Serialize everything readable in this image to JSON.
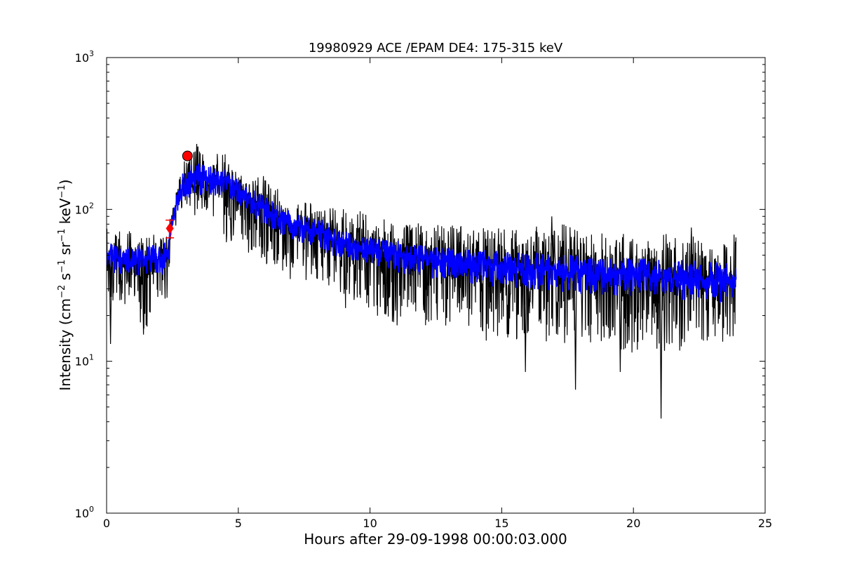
{
  "chart_data": {
    "type": "line",
    "title": "19980929 ACE /EPAM DE4: 175-315 keV",
    "xlabel": "Hours after 29-09-1998 00:00:03.000",
    "ylabel_parts": [
      "Intensity (cm",
      "−2",
      " s",
      "−1",
      " sr",
      "−1",
      " keV",
      "−1",
      ")"
    ],
    "xlim": [
      0,
      25
    ],
    "ylim": [
      1,
      1000
    ],
    "yscale": "log",
    "grid": false,
    "x_ticks": [
      {
        "value": 0,
        "label": "0"
      },
      {
        "value": 5,
        "label": "5"
      },
      {
        "value": 10,
        "label": "10"
      },
      {
        "value": 15,
        "label": "15"
      },
      {
        "value": 20,
        "label": "20"
      },
      {
        "value": 25,
        "label": "25"
      }
    ],
    "y_ticks": [
      {
        "value": 1,
        "base": "10",
        "exp": "0"
      },
      {
        "value": 10,
        "base": "10",
        "exp": "1"
      },
      {
        "value": 100,
        "base": "10",
        "exp": "2"
      },
      {
        "value": 1000,
        "base": "10",
        "exp": "3"
      }
    ],
    "series": [
      {
        "role": "raw",
        "color": "#000000",
        "envelope": [
          {
            "x": 0.0,
            "y": 48,
            "lo": 30,
            "hi": 80
          },
          {
            "x": 0.3,
            "y": 45,
            "lo": 22,
            "hi": 72
          },
          {
            "x": 1.0,
            "y": 47,
            "lo": 28,
            "hi": 72
          },
          {
            "x": 1.4,
            "y": 44,
            "lo": 15,
            "hi": 65
          },
          {
            "x": 2.0,
            "y": 47,
            "lo": 28,
            "hi": 70
          },
          {
            "x": 2.3,
            "y": 50,
            "lo": 22,
            "hi": 72
          },
          {
            "x": 2.5,
            "y": 90,
            "lo": 70,
            "hi": 105
          },
          {
            "x": 2.8,
            "y": 130,
            "lo": 100,
            "hi": 175
          },
          {
            "x": 3.0,
            "y": 150,
            "lo": 110,
            "hi": 220
          },
          {
            "x": 3.4,
            "y": 145,
            "lo": 100,
            "hi": 270
          },
          {
            "x": 4.0,
            "y": 160,
            "lo": 95,
            "hi": 230
          },
          {
            "x": 4.5,
            "y": 155,
            "lo": 60,
            "hi": 235
          },
          {
            "x": 5.0,
            "y": 135,
            "lo": 65,
            "hi": 205
          },
          {
            "x": 6.0,
            "y": 100,
            "lo": 45,
            "hi": 165
          },
          {
            "x": 7.0,
            "y": 80,
            "lo": 40,
            "hi": 125
          },
          {
            "x": 8.0,
            "y": 73,
            "lo": 35,
            "hi": 110
          },
          {
            "x": 9.0,
            "y": 60,
            "lo": 26,
            "hi": 100
          },
          {
            "x": 10.0,
            "y": 55,
            "lo": 22,
            "hi": 95
          },
          {
            "x": 11.0,
            "y": 50,
            "lo": 17,
            "hi": 85
          },
          {
            "x": 12.0,
            "y": 48,
            "lo": 17,
            "hi": 80
          },
          {
            "x": 13.0,
            "y": 45,
            "lo": 16,
            "hi": 82
          },
          {
            "x": 14.0,
            "y": 44,
            "lo": 15,
            "hi": 78
          },
          {
            "x": 15.0,
            "y": 43,
            "lo": 14,
            "hi": 75
          },
          {
            "x": 16.0,
            "y": 41,
            "lo": 14,
            "hi": 72
          },
          {
            "x": 17.0,
            "y": 41,
            "lo": 15,
            "hi": 88
          },
          {
            "x": 18.0,
            "y": 39,
            "lo": 12,
            "hi": 70
          },
          {
            "x": 19.0,
            "y": 38,
            "lo": 12,
            "hi": 70
          },
          {
            "x": 20.0,
            "y": 37,
            "lo": 12,
            "hi": 68
          },
          {
            "x": 21.0,
            "y": 36,
            "lo": 11,
            "hi": 70
          },
          {
            "x": 22.0,
            "y": 35,
            "lo": 12,
            "hi": 72
          },
          {
            "x": 23.0,
            "y": 34,
            "lo": 13,
            "hi": 65
          },
          {
            "x": 23.9,
            "y": 33,
            "lo": 13,
            "hi": 70
          }
        ],
        "spikes_low": [
          {
            "x": 0.15,
            "y": 13
          },
          {
            "x": 1.4,
            "y": 15
          },
          {
            "x": 15.9,
            "y": 8.5
          },
          {
            "x": 17.8,
            "y": 6.5
          },
          {
            "x": 19.5,
            "y": 8.5
          },
          {
            "x": 21.05,
            "y": 4.2
          }
        ],
        "spikes_high": [
          {
            "x": 3.42,
            "y": 270
          },
          {
            "x": 16.9,
            "y": 90
          },
          {
            "x": 22.2,
            "y": 76
          }
        ]
      },
      {
        "role": "smoothed",
        "color": "#0000ff",
        "envelope": [
          {
            "x": 0.0,
            "y": 48,
            "lo": 38,
            "hi": 60
          },
          {
            "x": 1.0,
            "y": 47,
            "lo": 37,
            "hi": 58
          },
          {
            "x": 2.0,
            "y": 47,
            "lo": 37,
            "hi": 58
          },
          {
            "x": 2.3,
            "y": 50,
            "lo": 38,
            "hi": 62
          },
          {
            "x": 2.5,
            "y": 90,
            "lo": 75,
            "hi": 100
          },
          {
            "x": 2.8,
            "y": 130,
            "lo": 110,
            "hi": 150
          },
          {
            "x": 3.0,
            "y": 150,
            "lo": 120,
            "hi": 210
          },
          {
            "x": 4.0,
            "y": 160,
            "lo": 125,
            "hi": 190
          },
          {
            "x": 4.5,
            "y": 155,
            "lo": 120,
            "hi": 185
          },
          {
            "x": 5.0,
            "y": 135,
            "lo": 105,
            "hi": 160
          },
          {
            "x": 6.0,
            "y": 100,
            "lo": 78,
            "hi": 120
          },
          {
            "x": 7.0,
            "y": 80,
            "lo": 62,
            "hi": 96
          },
          {
            "x": 8.0,
            "y": 73,
            "lo": 56,
            "hi": 88
          },
          {
            "x": 9.0,
            "y": 60,
            "lo": 46,
            "hi": 72
          },
          {
            "x": 10.0,
            "y": 55,
            "lo": 42,
            "hi": 66
          },
          {
            "x": 12.0,
            "y": 48,
            "lo": 36,
            "hi": 58
          },
          {
            "x": 14.0,
            "y": 44,
            "lo": 32,
            "hi": 54
          },
          {
            "x": 16.0,
            "y": 41,
            "lo": 30,
            "hi": 52
          },
          {
            "x": 18.0,
            "y": 39,
            "lo": 28,
            "hi": 50
          },
          {
            "x": 20.0,
            "y": 37,
            "lo": 27,
            "hi": 48
          },
          {
            "x": 22.0,
            "y": 35,
            "lo": 25,
            "hi": 46
          },
          {
            "x": 23.9,
            "y": 33,
            "lo": 24,
            "hi": 44
          }
        ]
      }
    ],
    "markers": [
      {
        "name": "peak-marker",
        "shape": "circle",
        "x": 3.07,
        "y": 225,
        "color": "#ff0000"
      },
      {
        "name": "onset-marker",
        "shape": "diamond",
        "x": 2.4,
        "y": 75,
        "color": "#ff0000",
        "err_lo": 65,
        "err_hi": 85
      }
    ]
  }
}
